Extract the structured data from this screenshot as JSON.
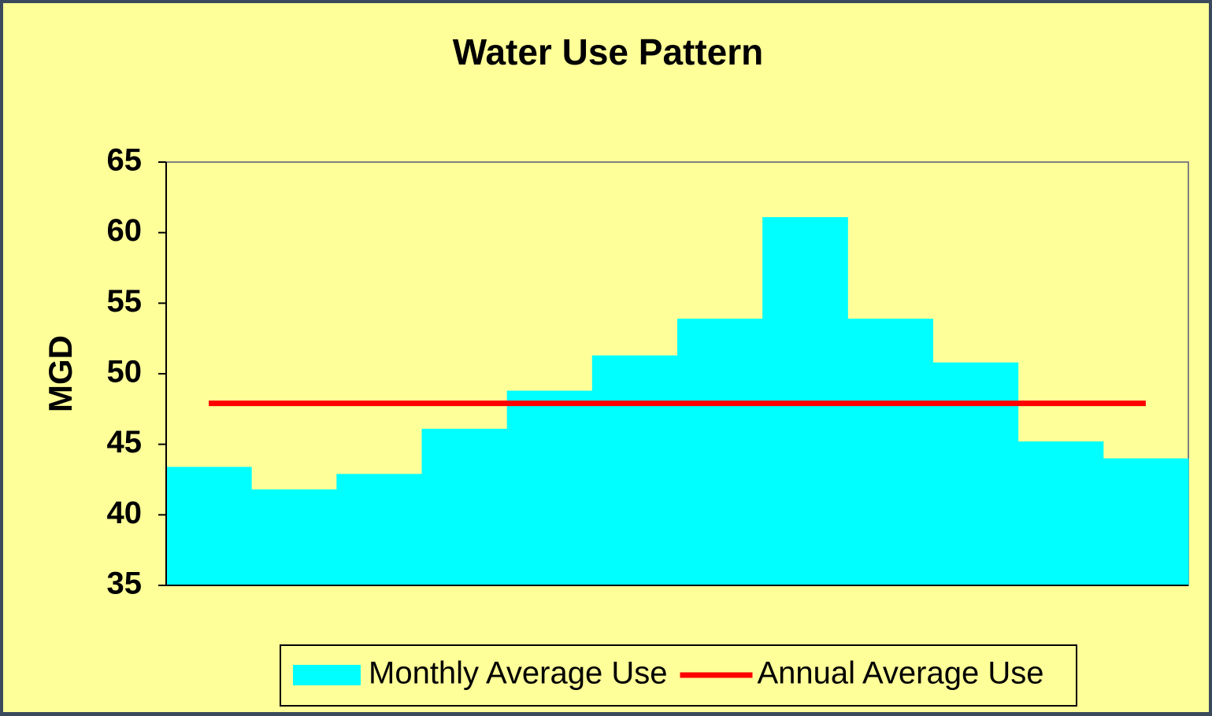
{
  "chart_data": {
    "type": "bar",
    "title": "Water Use Pattern",
    "y_label": "MGD",
    "categories": [
      null,
      null,
      null,
      null,
      null,
      null,
      null,
      null,
      null,
      null,
      null,
      null
    ],
    "series": [
      {
        "name": "Monthly Average Use",
        "type": "bar",
        "color": "#00ffff",
        "values": [
          43.4,
          41.8,
          42.9,
          46.1,
          48.8,
          51.3,
          53.9,
          61.1,
          53.9,
          50.8,
          45.2,
          44.0
        ]
      },
      {
        "name": "Annual Average Use",
        "type": "line",
        "color": "#ff0000",
        "values": [
          47.9,
          47.9,
          47.9,
          47.9,
          47.9,
          47.9,
          47.9,
          47.9,
          47.9,
          47.9,
          47.9,
          47.9
        ]
      }
    ],
    "ylim": [
      35,
      65
    ],
    "yticks": [
      35,
      40,
      45,
      50,
      55,
      60,
      65
    ],
    "legend": "bottom",
    "grid": false
  }
}
